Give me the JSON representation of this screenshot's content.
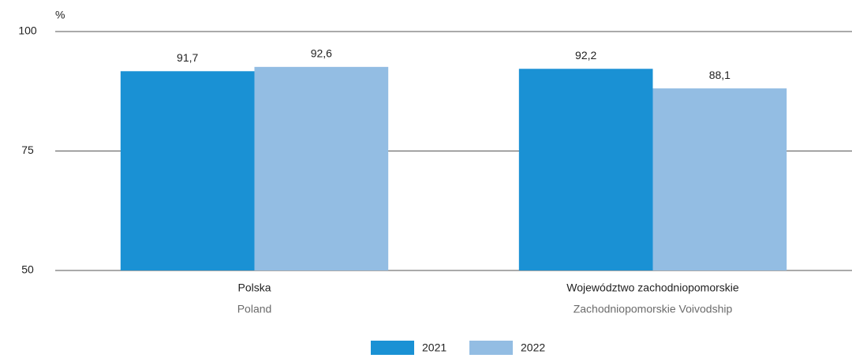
{
  "chart_data": {
    "type": "bar",
    "y_unit": "%",
    "categories": [
      "Polska",
      "Województwo zachodniopomorskie"
    ],
    "categories_en": [
      "Poland",
      "Zachodniopomorskie Voivodship"
    ],
    "series": [
      {
        "name": "2021",
        "color": "#1a91d4",
        "values": [
          91.7,
          92.2
        ],
        "value_labels": [
          "91,7",
          "92,2"
        ]
      },
      {
        "name": "2022",
        "color": "#93bde3",
        "values": [
          92.6,
          88.1
        ],
        "value_labels": [
          "92,6",
          "88,1"
        ]
      }
    ],
    "ylim": [
      50,
      100
    ],
    "yticks": [
      50,
      75,
      100
    ],
    "grid": true
  }
}
